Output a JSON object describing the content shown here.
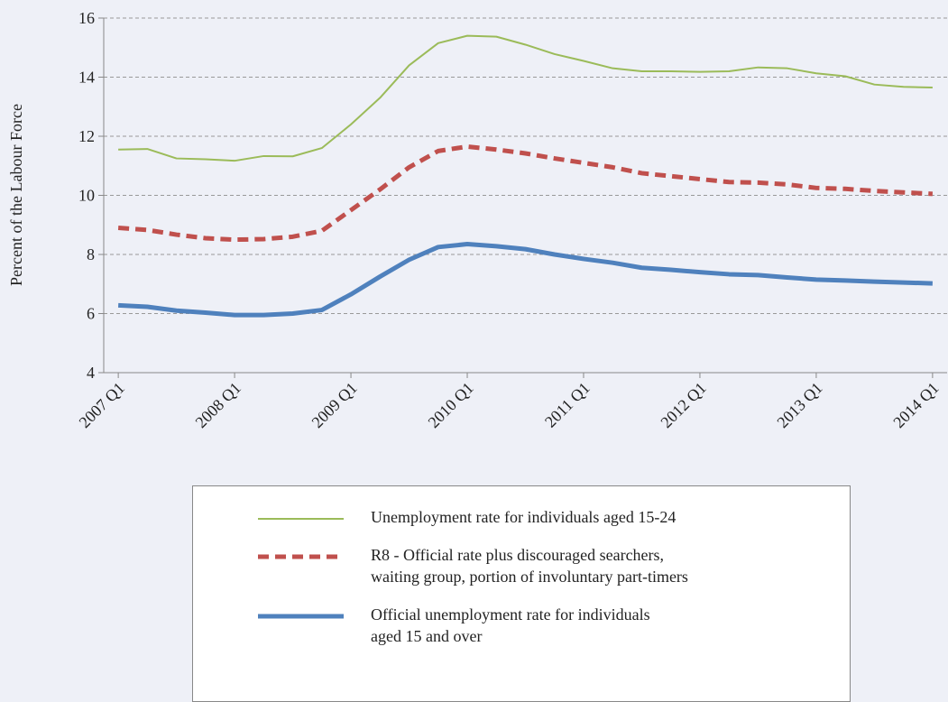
{
  "chart_data": {
    "type": "line",
    "ylabel": "Percent of the Labour Force",
    "categories": [
      "2007 Q1",
      null,
      null,
      null,
      "2008 Q1",
      null,
      null,
      null,
      "2009 Q1",
      null,
      null,
      null,
      "2010 Q1",
      null,
      null,
      null,
      "2011 Q1",
      null,
      null,
      null,
      "2012 Q1",
      null,
      null,
      null,
      "2013 Q1",
      null,
      null,
      null,
      "2014 Q1"
    ],
    "ylim": [
      4,
      16
    ],
    "yticks": [
      4,
      6,
      8,
      10,
      12,
      14,
      16
    ],
    "grid": true,
    "series": [
      {
        "name": "Unemployment rate for individuals aged 15-24",
        "color": "#9bbb59",
        "style": "solid",
        "values": [
          11.55,
          11.57,
          11.25,
          11.22,
          11.17,
          11.33,
          11.32,
          11.6,
          12.4,
          13.3,
          14.4,
          15.15,
          15.4,
          15.37,
          15.1,
          14.78,
          14.55,
          14.3,
          14.2,
          14.2,
          14.18,
          14.2,
          14.33,
          14.3,
          14.13,
          14.03,
          13.75,
          13.67,
          13.65
        ]
      },
      {
        "name": "R8 - Official rate plus discouraged searchers,\nwaiting group, portion of involuntary part-timers",
        "color": "#c0504d",
        "style": "dashed",
        "values": [
          8.9,
          8.83,
          8.67,
          8.55,
          8.5,
          8.52,
          8.6,
          8.8,
          9.5,
          10.2,
          10.95,
          11.5,
          11.65,
          11.55,
          11.42,
          11.25,
          11.1,
          10.95,
          10.75,
          10.65,
          10.55,
          10.45,
          10.43,
          10.37,
          10.25,
          10.22,
          10.15,
          10.1,
          10.05
        ]
      },
      {
        "name": "Official unemployment rate for individuals\naged 15 and over",
        "color": "#4f81bd",
        "style": "thick",
        "values": [
          6.28,
          6.23,
          6.1,
          6.03,
          5.95,
          5.95,
          6.0,
          6.12,
          6.65,
          7.25,
          7.82,
          8.25,
          8.35,
          8.28,
          8.18,
          8.0,
          7.85,
          7.72,
          7.55,
          7.48,
          7.4,
          7.33,
          7.3,
          7.22,
          7.15,
          7.12,
          7.08,
          7.05,
          7.02
        ]
      }
    ]
  }
}
